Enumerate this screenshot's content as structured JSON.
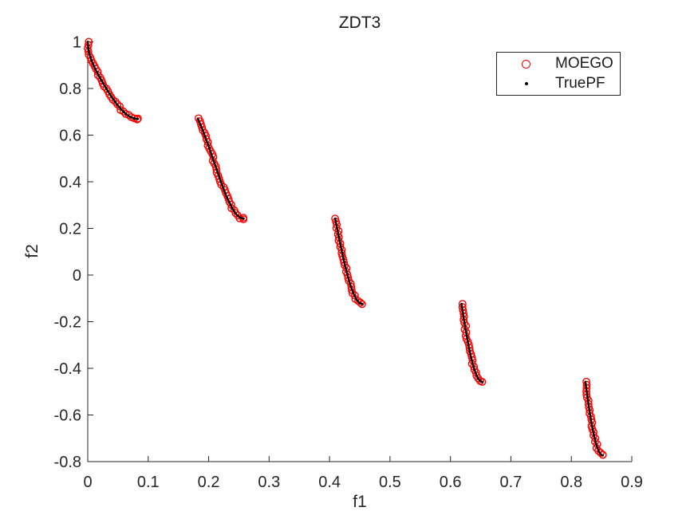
{
  "figure": {
    "title": "ZDT3",
    "xlabel": "f1",
    "ylabel": "f2"
  },
  "legend": {
    "position": "northeast",
    "items": [
      {
        "label": "MOEGO",
        "marker": "open-circle-icon",
        "color": "#ff0000"
      },
      {
        "label": "TruePF",
        "marker": "dot-icon",
        "color": "#000000"
      }
    ]
  },
  "chart_data": {
    "type": "scatter",
    "title": "ZDT3",
    "xlabel": "f1",
    "ylabel": "f2",
    "xlim": [
      0,
      0.9
    ],
    "ylim": [
      -0.8,
      1
    ],
    "grid": false,
    "legend_position": "northeast",
    "x_ticks": {
      "values": [
        0,
        0.1,
        0.2,
        0.3,
        0.4,
        0.5,
        0.6,
        0.7,
        0.8,
        0.9
      ],
      "labels": [
        "0",
        "0.1",
        "0.2",
        "0.3",
        "0.4",
        "0.5",
        "0.6",
        "0.7",
        "0.8",
        "0.9"
      ]
    },
    "y_ticks": {
      "values": [
        -0.8,
        -0.6,
        -0.4,
        -0.2,
        0,
        0.2,
        0.4,
        0.6,
        0.8,
        1
      ],
      "labels": [
        "-0.8",
        "-0.6",
        "-0.4",
        "-0.2",
        "0",
        "0.2",
        "0.4",
        "0.6",
        "0.8",
        "1"
      ]
    },
    "pareto_front_segments": [
      [
        [
          0,
          1.0
        ],
        [
          0.001,
          0.9683
        ],
        [
          0.0025,
          0.9498
        ],
        [
          0.005,
          0.9285
        ],
        [
          0.01,
          0.8969
        ],
        [
          0.015,
          0.8707
        ],
        [
          0.02,
          0.8468
        ],
        [
          0.025,
          0.8242
        ],
        [
          0.03,
          0.8025
        ],
        [
          0.035,
          0.7817
        ],
        [
          0.04,
          0.762
        ],
        [
          0.045,
          0.7434
        ],
        [
          0.05,
          0.7264
        ],
        [
          0.055,
          0.7112
        ],
        [
          0.06,
          0.698
        ],
        [
          0.065,
          0.6871
        ],
        [
          0.07,
          0.6788
        ],
        [
          0.075,
          0.6731
        ],
        [
          0.08,
          0.6701
        ],
        [
          0.083,
          0.6697
        ]
      ],
      [
        [
          0.1822,
          0.6709
        ],
        [
          0.19,
          0.6228
        ],
        [
          0.2,
          0.5528
        ],
        [
          0.21,
          0.4768
        ],
        [
          0.22,
          0.4016
        ],
        [
          0.23,
          0.3343
        ],
        [
          0.24,
          0.2819
        ],
        [
          0.245,
          0.263
        ],
        [
          0.25,
          0.25
        ],
        [
          0.2545,
          0.2435
        ],
        [
          0.2578,
          0.2421
        ]
      ],
      [
        [
          0.4093,
          0.2423
        ],
        [
          0.415,
          0.1674
        ],
        [
          0.42,
          0.1051
        ],
        [
          0.425,
          0.0476
        ],
        [
          0.43,
          -0.0036
        ],
        [
          0.435,
          -0.0471
        ],
        [
          0.44,
          -0.0818
        ],
        [
          0.445,
          -0.1066
        ],
        [
          0.45,
          -0.1208
        ],
        [
          0.4539,
          -0.1242
        ]
      ],
      [
        [
          0.6184,
          -0.1242
        ],
        [
          0.622,
          -0.1851
        ],
        [
          0.626,
          -0.2475
        ],
        [
          0.63,
          -0.3034
        ],
        [
          0.634,
          -0.3518
        ],
        [
          0.638,
          -0.3915
        ],
        [
          0.642,
          -0.4231
        ],
        [
          0.646,
          -0.4446
        ],
        [
          0.65,
          -0.4562
        ],
        [
          0.6525,
          -0.4583
        ]
      ],
      [
        [
          0.8233,
          -0.4577
        ],
        [
          0.826,
          -0.5112
        ],
        [
          0.83,
          -0.5825
        ],
        [
          0.834,
          -0.6442
        ],
        [
          0.838,
          -0.6941
        ],
        [
          0.842,
          -0.7332
        ],
        [
          0.846,
          -0.7591
        ],
        [
          0.85,
          -0.772
        ],
        [
          0.8518,
          -0.7734
        ]
      ]
    ],
    "series": [
      {
        "name": "MOEGO",
        "marker": "open-circle",
        "color": "#ff0000",
        "data": "pareto_front_segments"
      },
      {
        "name": "TruePF",
        "marker": "dot",
        "color": "#000000",
        "data": "pareto_front_segments"
      }
    ]
  }
}
